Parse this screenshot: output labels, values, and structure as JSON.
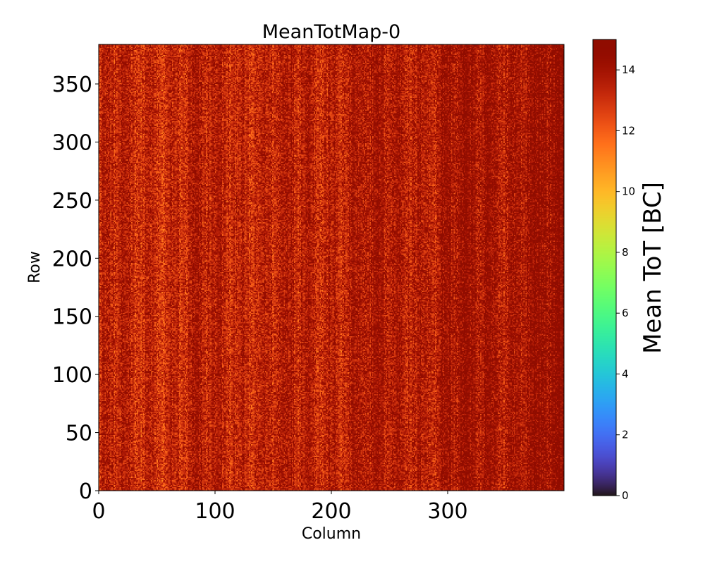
{
  "chart_data": {
    "type": "heatmap",
    "title": "MeanTotMap-0",
    "xlabel": "Column",
    "ylabel": "Row",
    "colorbar_label": "Mean ToT [BC]",
    "colormap": "turbo",
    "columns": 400,
    "rows": 384,
    "xlim": [
      0,
      400
    ],
    "ylim": [
      0,
      384
    ],
    "clim": [
      0,
      15
    ],
    "x_ticks": [
      0,
      100,
      200,
      300
    ],
    "y_ticks": [
      0,
      50,
      100,
      150,
      200,
      250,
      300,
      350
    ],
    "colorbar_ticks": [
      0,
      2,
      4,
      6,
      8,
      10,
      12,
      14
    ],
    "value_summary": {
      "typical_min": 11,
      "typical_max": 15,
      "left_half_mean": 13.3,
      "right_edge_mean": 14.3
    },
    "grid": false,
    "legend": "none"
  }
}
